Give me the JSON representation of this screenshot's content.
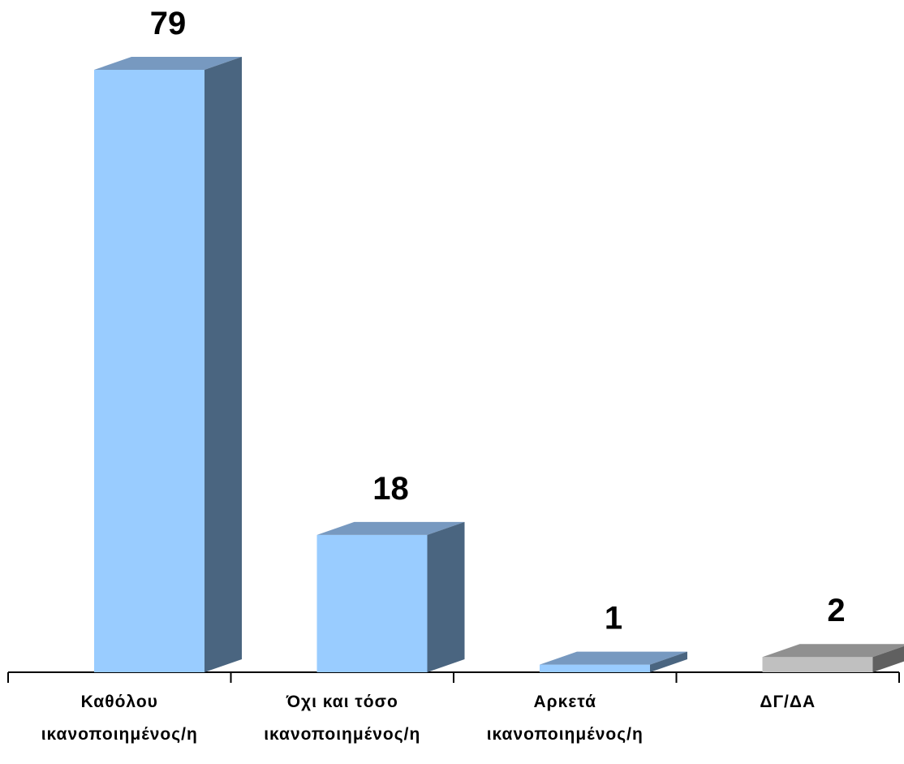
{
  "chart_data": {
    "type": "bar",
    "style": "3d-column",
    "categories": [
      [
        "Καθόλου",
        "ικανοποιημένος/η"
      ],
      [
        "Όχι και τόσο",
        "ικανοποιημένος/η"
      ],
      [
        "Αρκετά",
        "ικανοποιημένος/η"
      ],
      [
        "ΔΓ/ΔΑ"
      ]
    ],
    "values": [
      79,
      18,
      1,
      2
    ],
    "data_labels": [
      "79",
      "18",
      "1",
      "2"
    ],
    "ylim": [
      0,
      79
    ],
    "title": "",
    "xlabel": "",
    "ylabel": "",
    "grid": false,
    "legend": "none",
    "colors": {
      "front": [
        "#99ccff",
        "#99ccff",
        "#99ccff",
        "#c0c0c0"
      ],
      "top": [
        "#7799c0",
        "#7799c0",
        "#7799c0",
        "#909090"
      ],
      "side": [
        "#4a6580",
        "#4a6580",
        "#4a6580",
        "#606060"
      ],
      "axis": "#000000"
    }
  }
}
